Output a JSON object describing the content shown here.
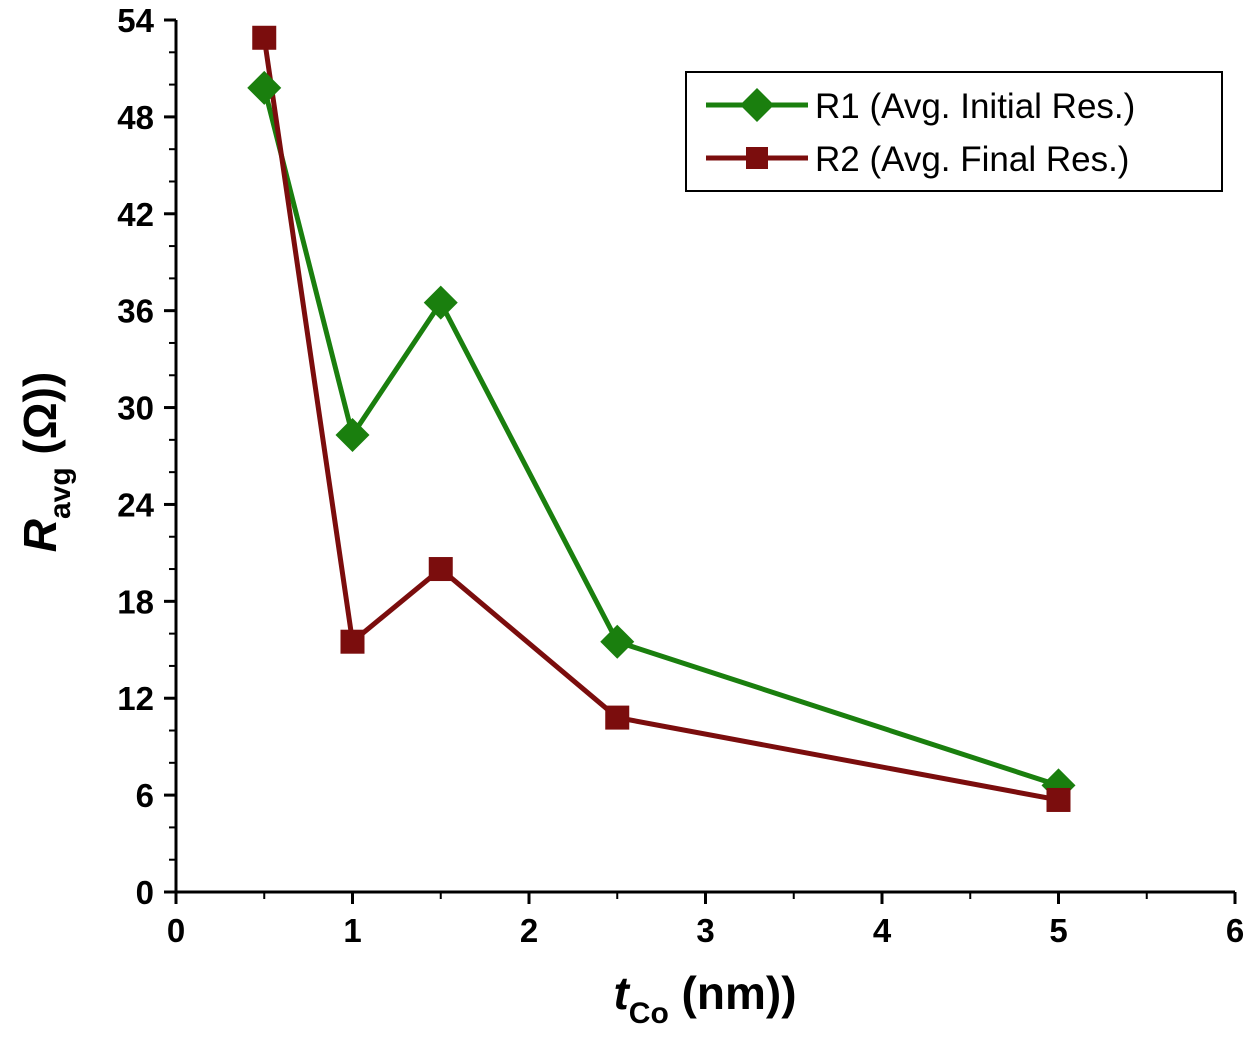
{
  "chart_data": {
    "type": "line",
    "title": "",
    "xlabel": {
      "italic": "t",
      "sub": "Co",
      "rest": " (nm))"
    },
    "ylabel": {
      "italic": "R",
      "sub": "avg",
      "rest": " (Ω))"
    },
    "xlim": [
      0,
      6
    ],
    "ylim": [
      0,
      54
    ],
    "x_ticks": [
      "0",
      "1",
      "2",
      "3",
      "4",
      "5",
      "6"
    ],
    "y_ticks": [
      "0",
      "6",
      "12",
      "18",
      "24",
      "30",
      "36",
      "42",
      "48",
      "54"
    ],
    "x_tick_values": [
      0,
      1,
      2,
      3,
      4,
      5,
      6
    ],
    "y_tick_values": [
      0,
      6,
      12,
      18,
      24,
      30,
      36,
      42,
      48,
      54
    ],
    "grid": false,
    "legend_position": "top-right",
    "series": [
      {
        "name": "R1 (Avg. Initial Res.)",
        "marker": "diamond",
        "color": "#1a7f0e",
        "x": [
          0.5,
          1.0,
          1.5,
          2.5,
          5.0
        ],
        "y": [
          49.8,
          28.3,
          36.5,
          15.5,
          6.6
        ]
      },
      {
        "name": "R2 (Avg. Final Res.)",
        "marker": "square",
        "color": "#7b0d0d",
        "x": [
          0.5,
          1.0,
          1.5,
          2.5,
          5.0
        ],
        "y": [
          52.9,
          15.5,
          20.0,
          10.8,
          5.7
        ]
      }
    ]
  }
}
